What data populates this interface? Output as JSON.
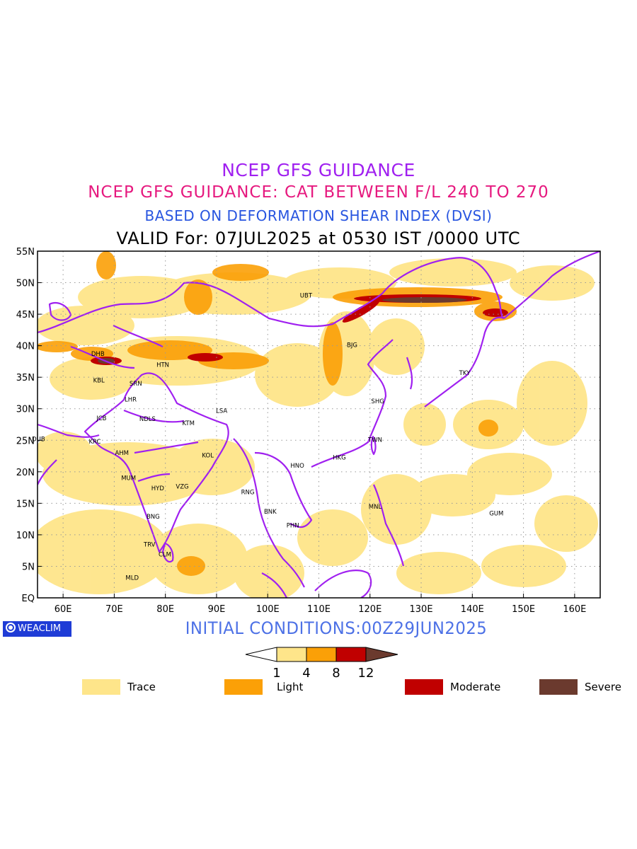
{
  "titles": {
    "line1": "NCEP GFS GUIDANCE",
    "line2": "NCEP GFS GUIDANCE: CAT BETWEEN F/L 240 TO 270",
    "line3": "BASED ON DEFORMATION SHEAR INDEX (DVSI)",
    "line4": "VALID For: 07JUL2025 at 0530 IST /0000 UTC"
  },
  "map": {
    "lon_range": [
      55,
      165
    ],
    "lat_range": [
      0,
      55
    ],
    "lon_ticks": [
      "60E",
      "70E",
      "80E",
      "90E",
      "100E",
      "110E",
      "120E",
      "130E",
      "140E",
      "150E",
      "160E"
    ],
    "lat_ticks": [
      "55N",
      "50N",
      "45N",
      "40N",
      "35N",
      "30N",
      "25N",
      "20N",
      "15N",
      "10N",
      "5N",
      "EQ"
    ],
    "cities": [
      {
        "name": "UBT",
        "lon": 107.5,
        "lat": 48.0
      },
      {
        "name": "BJG",
        "lon": 116.5,
        "lat": 40.1
      },
      {
        "name": "DHB",
        "lon": 66.8,
        "lat": 38.7
      },
      {
        "name": "HTN",
        "lon": 79.5,
        "lat": 37.0
      },
      {
        "name": "KBL",
        "lon": 67.0,
        "lat": 34.5
      },
      {
        "name": "SRN",
        "lon": 74.2,
        "lat": 34.0
      },
      {
        "name": "LHR",
        "lon": 73.2,
        "lat": 31.5
      },
      {
        "name": "TKY",
        "lon": 138.5,
        "lat": 35.7
      },
      {
        "name": "SHG",
        "lon": 121.5,
        "lat": 31.2
      },
      {
        "name": "LSA",
        "lon": 91.0,
        "lat": 29.7
      },
      {
        "name": "JCB",
        "lon": 67.5,
        "lat": 28.5
      },
      {
        "name": "NDLS",
        "lon": 76.5,
        "lat": 28.4
      },
      {
        "name": "KTM",
        "lon": 84.5,
        "lat": 27.7
      },
      {
        "name": "DUB",
        "lon": 55.2,
        "lat": 25.2
      },
      {
        "name": "TWN",
        "lon": 121.0,
        "lat": 25.1
      },
      {
        "name": "KRC",
        "lon": 66.2,
        "lat": 24.8
      },
      {
        "name": "AHM",
        "lon": 71.5,
        "lat": 23.0
      },
      {
        "name": "KOL",
        "lon": 88.3,
        "lat": 22.6
      },
      {
        "name": "HKG",
        "lon": 114.0,
        "lat": 22.3
      },
      {
        "name": "HNO",
        "lon": 105.8,
        "lat": 21.0
      },
      {
        "name": "MUM",
        "lon": 72.8,
        "lat": 19.0
      },
      {
        "name": "HYD",
        "lon": 78.5,
        "lat": 17.4
      },
      {
        "name": "VZG",
        "lon": 83.3,
        "lat": 17.7
      },
      {
        "name": "RNG",
        "lon": 96.1,
        "lat": 16.8
      },
      {
        "name": "BNK",
        "lon": 100.5,
        "lat": 13.7
      },
      {
        "name": "MNL",
        "lon": 121.0,
        "lat": 14.5
      },
      {
        "name": "GUM",
        "lon": 144.7,
        "lat": 13.4
      },
      {
        "name": "PHN",
        "lon": 104.9,
        "lat": 11.5
      },
      {
        "name": "BNG",
        "lon": 77.6,
        "lat": 12.9
      },
      {
        "name": "TRV",
        "lon": 76.9,
        "lat": 8.5
      },
      {
        "name": "CLM",
        "lon": 79.9,
        "lat": 6.9
      },
      {
        "name": "MLD",
        "lon": 73.5,
        "lat": 3.2
      }
    ],
    "colors": {
      "trace": "#fee58a",
      "light": "#fba007",
      "moderate": "#c00000",
      "severe": "#6b3a2e",
      "border": "#a020f0"
    }
  },
  "initial_conditions": "INITIAL CONDITIONS:00Z29JUN2025",
  "brand": "WEACLIM",
  "colorbar": {
    "labels": [
      "1",
      "4",
      "8",
      "12"
    ],
    "colors": [
      "#fee58a",
      "#fba007",
      "#c00000",
      "#6b3a2e"
    ]
  },
  "legend": [
    {
      "label": "Trace",
      "color": "#fee58a"
    },
    {
      "label": "Light",
      "color": "#fba007"
    },
    {
      "label": "Moderate",
      "color": "#c00000"
    },
    {
      "label": "Severe",
      "color": "#6b3a2e"
    }
  ]
}
